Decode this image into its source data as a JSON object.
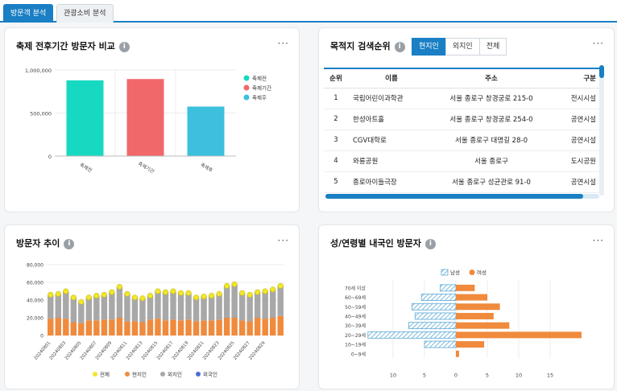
{
  "tabs": [
    {
      "label": "방문객 분석",
      "active": true
    },
    {
      "label": "관광소비 분석",
      "active": false
    }
  ],
  "card1": {
    "title": "축제 전후기간 방문자 비교",
    "more": "···",
    "info": "i",
    "chart_data": {
      "type": "bar",
      "categories": [
        "축제전",
        "축제기간",
        "축제후"
      ],
      "values": [
        880000,
        895000,
        575000
      ],
      "colors": [
        "#17d9c1",
        "#f06868",
        "#3cc0dd"
      ],
      "legend": [
        "축제전",
        "축제기간",
        "축제후"
      ],
      "legend_position": "top-right",
      "ylim": [
        0,
        1000000
      ],
      "yticks": [
        "0",
        "500,000",
        "1,000,000"
      ]
    }
  },
  "card2": {
    "title": "목적지 검색순위",
    "info": "i",
    "more": "···",
    "segments": [
      {
        "label": "현지인",
        "active": true
      },
      {
        "label": "외지인",
        "active": false
      },
      {
        "label": "전체",
        "active": false
      }
    ],
    "columns": [
      "순위",
      "이름",
      "주소",
      "구분"
    ],
    "rows": [
      {
        "rank": "1",
        "name": "국립어린이과학관",
        "address": "서울 종로구 창경궁로 215-0",
        "type": "전시시설"
      },
      {
        "rank": "2",
        "name": "한성아트홀",
        "address": "서울 종로구 창경궁로 254-0",
        "type": "공연시설"
      },
      {
        "rank": "3",
        "name": "CGV대학로",
        "address": "서울 종로구 대명길 28-0",
        "type": "공연시설"
      },
      {
        "rank": "4",
        "name": "와룡공원",
        "address": "서울 종로구",
        "type": "도시공원"
      },
      {
        "rank": "5",
        "name": "종로아이들극장",
        "address": "서울 종로구 성균관로 91-0",
        "type": "공연시설"
      }
    ]
  },
  "card3": {
    "title": "방문자 추이",
    "info": "i",
    "more": "···",
    "chart_data": {
      "type": "bar",
      "stacked": true,
      "ylim": [
        0,
        80000
      ],
      "yticks": [
        "0",
        "20,000",
        "40,000",
        "60,000",
        "80,000"
      ],
      "xticks": [
        "20240801",
        "20240803",
        "20240805",
        "20240807",
        "20240809",
        "20240811",
        "20240813",
        "20240815",
        "20240817",
        "20240819",
        "20240821",
        "20240823",
        "20240825",
        "20240827",
        "20240829"
      ],
      "series": [
        {
          "name": "현지인",
          "color": "#f08a3c",
          "values": [
            19000,
            20000,
            19000,
            15000,
            14000,
            17000,
            17000,
            18000,
            18000,
            20000,
            16000,
            16000,
            15000,
            18000,
            19000,
            17000,
            18000,
            17000,
            18000,
            16000,
            17000,
            17000,
            18000,
            20000,
            20000,
            17000,
            16000,
            20000,
            19000,
            20000,
            22000
          ]
        },
        {
          "name": "외지인",
          "color": "#a8a8a8",
          "values": [
            27000,
            27000,
            31000,
            28000,
            24000,
            26000,
            28000,
            28000,
            31000,
            35000,
            31000,
            27000,
            27000,
            27000,
            31000,
            32000,
            32000,
            31000,
            30000,
            27000,
            27000,
            28000,
            29000,
            36000,
            38000,
            31000,
            30000,
            29000,
            31000,
            32000,
            34000
          ]
        },
        {
          "name": "외국인",
          "color": "#4c6fd1",
          "values": [
            0,
            0,
            0,
            0,
            0,
            0,
            0,
            0,
            0,
            0,
            0,
            0,
            0,
            0,
            0,
            0,
            0,
            0,
            0,
            0,
            0,
            0,
            0,
            0,
            0,
            0,
            0,
            0,
            0,
            0,
            0
          ]
        },
        {
          "name": "전체",
          "color": "#f2e62b",
          "type": "point",
          "values": [
            46000,
            47000,
            50000,
            43000,
            38000,
            43000,
            45000,
            46000,
            49000,
            55000,
            47000,
            43000,
            42000,
            45000,
            50000,
            49000,
            50000,
            48000,
            48000,
            43000,
            44000,
            45000,
            47000,
            56000,
            58000,
            48000,
            46000,
            49000,
            50000,
            52000,
            56000
          ]
        }
      ],
      "legend": [
        "전체",
        "현지인",
        "외지인",
        "외국인"
      ],
      "legend_position": "bottom"
    }
  },
  "card4": {
    "title": "성/연령별 내국인 방문자",
    "info": "i",
    "more": "···",
    "chart_data": {
      "type": "bar",
      "orientation": "horizontal",
      "categories": [
        "70세 이상",
        "60~69세",
        "50~59세",
        "40~49세",
        "30~39세",
        "20~29세",
        "10~19세",
        "0~9세"
      ],
      "series": [
        {
          "name": "남성",
          "color": "#5aa9d6",
          "values": [
            2.5,
            5.5,
            7,
            6.5,
            7.5,
            14,
            5,
            0
          ]
        },
        {
          "name": "여성",
          "color": "#f08a3c",
          "values": [
            3,
            5,
            7,
            6,
            8.5,
            20,
            4.5,
            0.5
          ]
        }
      ],
      "xticks": [
        "10",
        "5",
        "0",
        "5",
        "10",
        "15"
      ],
      "legend": [
        "남성",
        "여성"
      ],
      "legend_position": "top"
    }
  }
}
